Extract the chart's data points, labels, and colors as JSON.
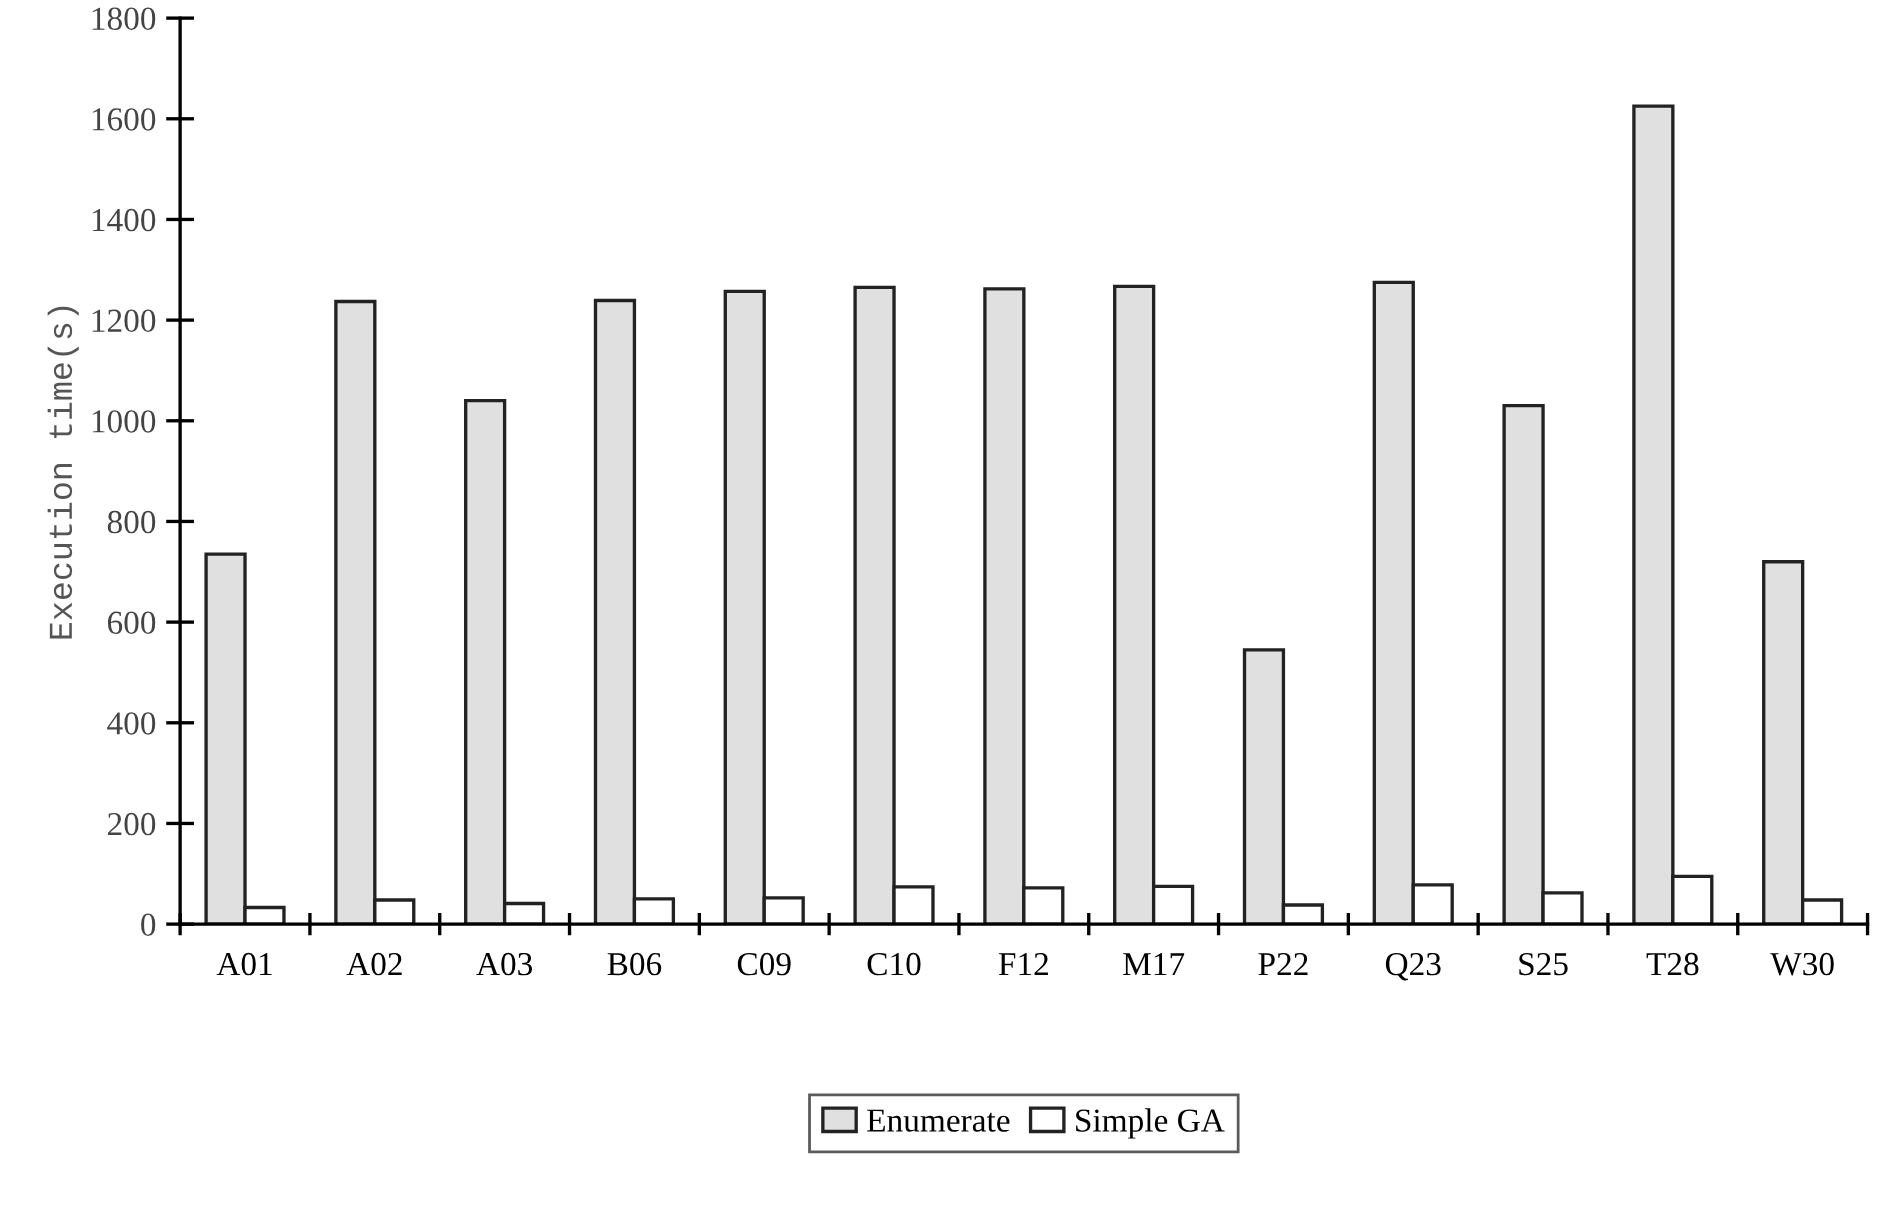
{
  "chart_data": {
    "type": "bar",
    "ylabel": "Execution time(s)",
    "categories": [
      "A01",
      "A02",
      "A03",
      "B06",
      "C09",
      "C10",
      "F12",
      "M17",
      "P22",
      "Q23",
      "S25",
      "T28",
      "W30"
    ],
    "series": [
      {
        "name": "Enumerate",
        "color": "#e0e0e0",
        "values": [
          735,
          1237,
          1040,
          1239,
          1257,
          1265,
          1262,
          1267,
          545,
          1275,
          1030,
          1625,
          720
        ]
      },
      {
        "name": "Simple GA",
        "color": "#ffffff",
        "values": [
          33,
          48,
          41,
          50,
          52,
          74,
          72,
          75,
          38,
          78,
          62,
          95,
          48
        ]
      }
    ],
    "ylim": [
      0,
      1800
    ],
    "yticks": [
      0,
      200,
      400,
      600,
      800,
      1000,
      1200,
      1400,
      1600,
      1800
    ],
    "grid": false,
    "legend": "bottom"
  }
}
